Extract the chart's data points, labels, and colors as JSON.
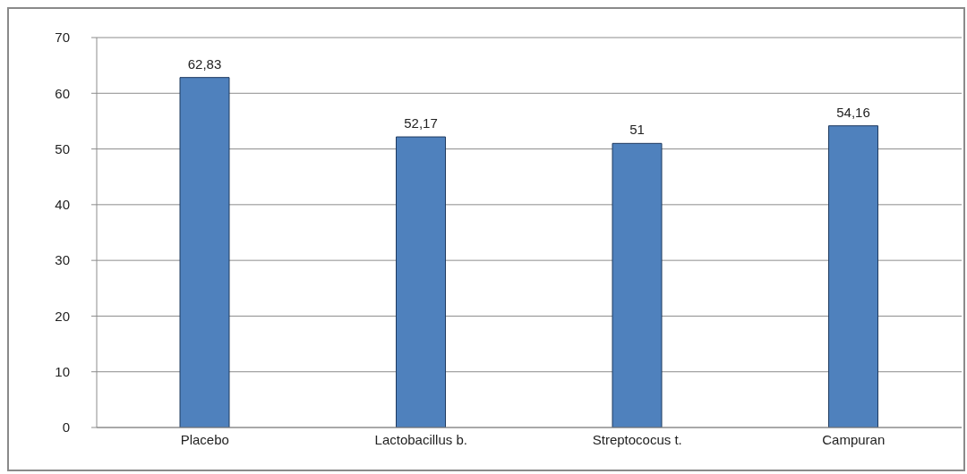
{
  "chart_data": {
    "type": "bar",
    "categories": [
      "Placebo",
      "Lactobacillus b.",
      "Streptococus t.",
      "Campuran"
    ],
    "values": [
      62.83,
      52.17,
      51,
      54.16
    ],
    "value_labels": [
      "62,83",
      "52,17",
      "51",
      "54,16"
    ],
    "color": "#4f81bd",
    "ylim": [
      0,
      70
    ],
    "yticks": [
      0,
      10,
      20,
      30,
      40,
      50,
      60,
      70
    ],
    "grid": "y",
    "legend": false
  }
}
